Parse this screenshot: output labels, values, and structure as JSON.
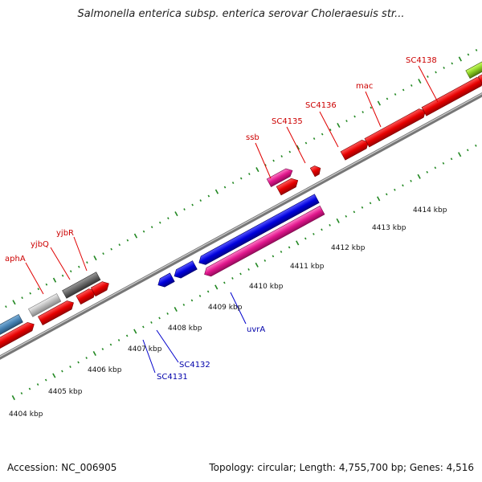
{
  "title": "Salmonella enterica subsp. enterica serovar Choleraesuis str...",
  "footer": {
    "accession": "Accession: NC_006905",
    "summary": "Topology: circular; Length: 4,755,700 bp; Genes: 4,516"
  },
  "ruler": {
    "labels": [
      "4404 kbp",
      "4405 kbp",
      "4406 kbp",
      "4407 kbp",
      "4408 kbp",
      "4409 kbp",
      "4410 kbp",
      "4411 kbp",
      "4412 kbp",
      "4413 kbp",
      "4414 kbp"
    ]
  },
  "colors": {
    "forward_label": "#cc0000",
    "reverse_label": "#0000aa",
    "red_gene": "#e60000",
    "blue_gene": "#0000dd",
    "pink_gene": "#e0168c",
    "gray_gene": "#bbbbbb",
    "dark_gray_gene": "#666666",
    "steel_blue_gene": "#4682b4",
    "green_gene": "#88cc22",
    "backbone": "#888888",
    "tick": "#228822"
  },
  "gene_labels": {
    "forward": [
      "aphA",
      "yjbQ",
      "yjbR",
      "ssb",
      "SC4135",
      "SC4136",
      "mac",
      "SC4138"
    ],
    "reverse": [
      "SC4131",
      "SC4132",
      "uvrA"
    ]
  }
}
